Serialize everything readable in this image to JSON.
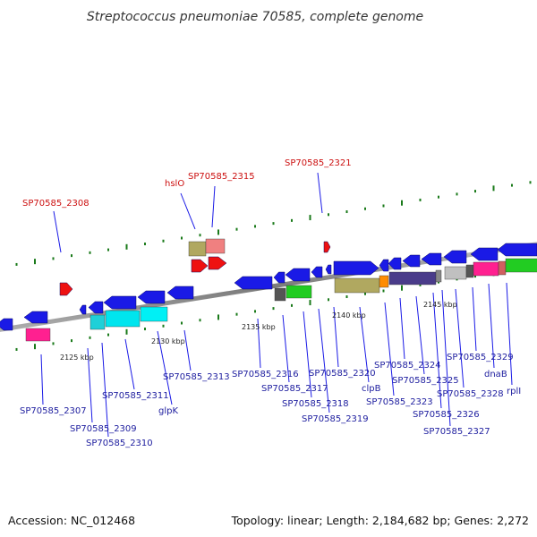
{
  "title": "Streptococcus pneumoniae 70585, complete genome",
  "accession": "Accession: NC_012468",
  "summary": "Topology: linear; Length: 2,184,682 bp; Genes: 2,272",
  "scale_labels": [
    "2125 kbp",
    "2130 kbp",
    "2135 kbp",
    "2140 kbp",
    "2145 kbp"
  ],
  "gene_labels": [
    "SP70585_2307",
    "SP70585_2309",
    "SP70585_2310",
    "SP70585_2311",
    "glpK",
    "SP70585_2313",
    "SP70585_2316",
    "SP70585_2317",
    "SP70585_2318",
    "SP70585_2319",
    "SP70585_2320",
    "clpB",
    "SP70585_2323",
    "SP70585_2324",
    "SP70585_2325",
    "SP70585_2326",
    "SP70585_2327",
    "SP70585_2328",
    "SP70585_2329",
    "dnaB",
    "rplI"
  ],
  "rna_labels": [
    "SP70585_2308",
    "hslO",
    "SP70585_2315",
    "SP70585_2321"
  ],
  "colors": {
    "cds": "#1a1ae6",
    "rna": "#ee1111",
    "axis": "#888888",
    "tick": "#1a7a1a",
    "gene_label": "#2020a0",
    "rna_label": "#cc1010"
  }
}
